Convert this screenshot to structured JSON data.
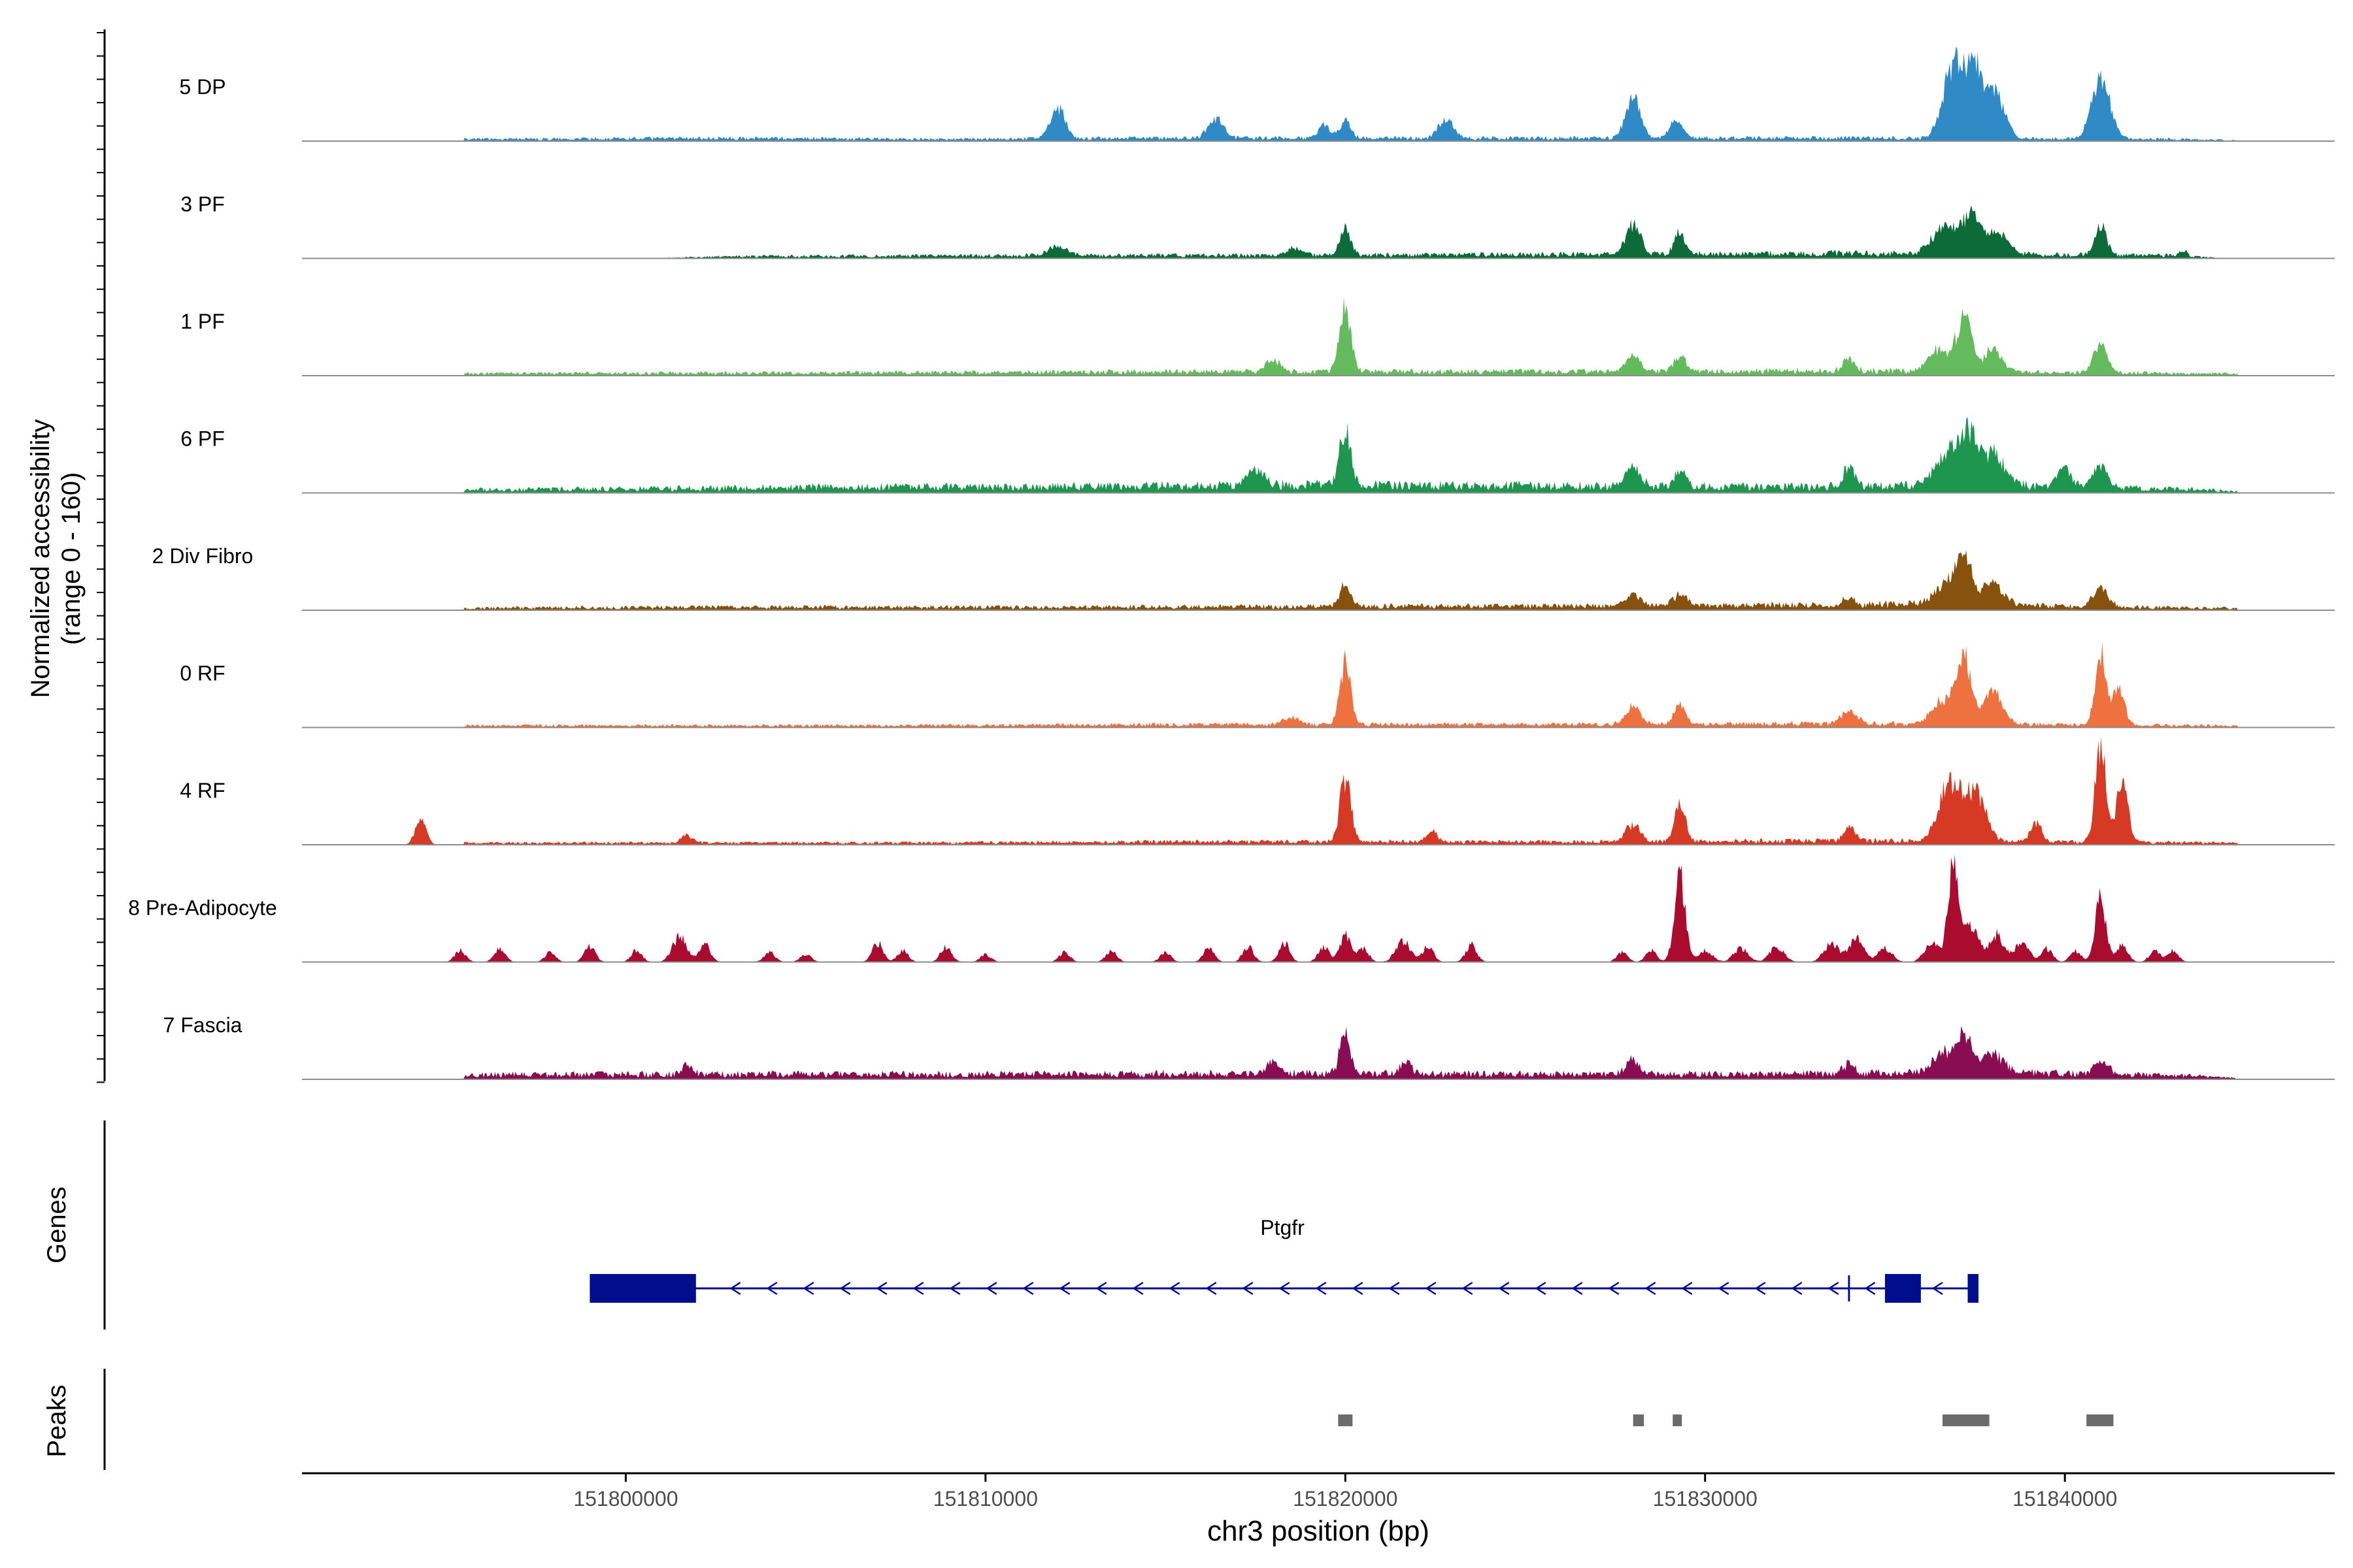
{
  "chart_data": {
    "type": "area",
    "subtype": "genome-coverage-plot",
    "region": {
      "chrom": "chr3",
      "start": 151791000,
      "end": 151847500
    },
    "axes": {
      "left_label_line1": "Normalized accessibility",
      "left_label_line2": "(range 0 - 160)",
      "ylim": [
        0,
        160
      ],
      "genes_label": "Genes",
      "peaks_label": "Peaks",
      "x_label": "chr3 position (bp)",
      "x_ticks": [
        151800000,
        151810000,
        151820000,
        151830000,
        151840000
      ],
      "x_tick_labels": [
        "151800000",
        "151810000",
        "151820000",
        "151830000",
        "151840000"
      ]
    },
    "tracks": [
      {
        "name": "5 DP",
        "color": "#2f8ac6",
        "baseline": [
          [
            151794000,
            2
          ],
          [
            151797000,
            2
          ],
          [
            151803000,
            3
          ],
          [
            151808000,
            2
          ],
          [
            151815000,
            3
          ],
          [
            151826000,
            3
          ],
          [
            151834000,
            3
          ],
          [
            151843000,
            2
          ],
          [
            151844500,
            1
          ]
        ],
        "peaks": [
          [
            151812000,
            34,
            200
          ],
          [
            151816400,
            22,
            200
          ],
          [
            151819400,
            15,
            150
          ],
          [
            151820000,
            18,
            150
          ],
          [
            151822800,
            20,
            200
          ],
          [
            151828000,
            42,
            200
          ],
          [
            151829200,
            16,
            200
          ],
          [
            151836900,
            70,
            280
          ],
          [
            151837500,
            68,
            280
          ],
          [
            151838100,
            40,
            250
          ],
          [
            151841000,
            65,
            250
          ]
        ]
      },
      {
        "name": "3 PF",
        "color": "#0c6b38",
        "baseline": [
          [
            151803000,
            2
          ],
          [
            151811000,
            3
          ],
          [
            151818000,
            3
          ],
          [
            151826000,
            4
          ],
          [
            151835000,
            5
          ],
          [
            151843000,
            3
          ]
        ],
        "peaks": [
          [
            151812000,
            10,
            250
          ],
          [
            151818600,
            8,
            200
          ],
          [
            151820000,
            28,
            150
          ],
          [
            151828000,
            32,
            200
          ],
          [
            151829300,
            22,
            150
          ],
          [
            151836600,
            25,
            300
          ],
          [
            151837400,
            40,
            300
          ],
          [
            151838200,
            22,
            250
          ],
          [
            151841000,
            32,
            150
          ],
          [
            151843300,
            6,
            100
          ]
        ]
      },
      {
        "name": "1 PF",
        "color": "#63bb5d",
        "baseline": [
          [
            151794000,
            2
          ],
          [
            151808000,
            3
          ],
          [
            151815000,
            4
          ],
          [
            151826000,
            4
          ],
          [
            151834000,
            5
          ],
          [
            151844500,
            2
          ]
        ],
        "peaks": [
          [
            151818000,
            12,
            200
          ],
          [
            151820000,
            70,
            150
          ],
          [
            151828000,
            16,
            200
          ],
          [
            151829300,
            18,
            150
          ],
          [
            151834000,
            12,
            150
          ],
          [
            151836500,
            22,
            300
          ],
          [
            151837200,
            58,
            200
          ],
          [
            151838000,
            24,
            250
          ],
          [
            151841000,
            28,
            200
          ]
        ]
      },
      {
        "name": "6 PF",
        "color": "#1e9650",
        "baseline": [
          [
            151794000,
            3
          ],
          [
            151800000,
            4
          ],
          [
            151806000,
            6
          ],
          [
            151812000,
            6
          ],
          [
            151818000,
            8
          ],
          [
            151826000,
            7
          ],
          [
            151832000,
            6
          ],
          [
            151838000,
            8
          ],
          [
            151844000,
            3
          ]
        ],
        "peaks": [
          [
            151817500,
            14,
            250
          ],
          [
            151820000,
            58,
            150
          ],
          [
            151828000,
            20,
            200
          ],
          [
            151829300,
            18,
            150
          ],
          [
            151834000,
            22,
            150
          ],
          [
            151836700,
            32,
            300
          ],
          [
            151837300,
            52,
            250
          ],
          [
            151838000,
            32,
            300
          ],
          [
            151840000,
            18,
            200
          ],
          [
            151841000,
            22,
            200
          ]
        ]
      },
      {
        "name": "2 Div Fibro",
        "color": "#86520d",
        "baseline": [
          [
            151794000,
            2
          ],
          [
            151802000,
            3
          ],
          [
            151812000,
            3
          ],
          [
            151820000,
            4
          ],
          [
            151828000,
            4
          ],
          [
            151836000,
            6
          ],
          [
            151844500,
            2
          ]
        ],
        "peaks": [
          [
            151820000,
            22,
            150
          ],
          [
            151828000,
            14,
            200
          ],
          [
            151829300,
            12,
            200
          ],
          [
            151834000,
            8,
            150
          ],
          [
            151836700,
            22,
            300
          ],
          [
            151837200,
            48,
            200
          ],
          [
            151838000,
            22,
            300
          ],
          [
            151841000,
            20,
            200
          ]
        ]
      },
      {
        "name": "0 RF",
        "color": "#ee7140",
        "baseline": [
          [
            151794000,
            2
          ],
          [
            151808000,
            2
          ],
          [
            151815000,
            3
          ],
          [
            151826000,
            3
          ],
          [
            151834000,
            4
          ],
          [
            151844500,
            2
          ]
        ],
        "peaks": [
          [
            151818500,
            8,
            200
          ],
          [
            151820000,
            62,
            150
          ],
          [
            151828000,
            18,
            200
          ],
          [
            151829300,
            22,
            150
          ],
          [
            151834000,
            14,
            200
          ],
          [
            151836600,
            24,
            300
          ],
          [
            151837200,
            72,
            200
          ],
          [
            151838000,
            34,
            250
          ],
          [
            151841000,
            72,
            150
          ],
          [
            151841500,
            40,
            150
          ]
        ]
      },
      {
        "name": "4 RF",
        "color": "#d63a24",
        "baseline": [
          [
            151794000,
            2
          ],
          [
            151808000,
            2
          ],
          [
            151815000,
            3
          ],
          [
            151826000,
            3
          ],
          [
            151834000,
            4
          ],
          [
            151844500,
            2
          ]
        ],
        "peaks": [
          [
            151794300,
            26,
            150
          ],
          [
            151801700,
            8,
            150
          ],
          [
            151820000,
            66,
            150
          ],
          [
            151822400,
            10,
            150
          ],
          [
            151828000,
            18,
            200
          ],
          [
            151829300,
            36,
            150
          ],
          [
            151834000,
            14,
            150
          ],
          [
            151836800,
            60,
            300
          ],
          [
            151837500,
            48,
            300
          ],
          [
            151839200,
            20,
            150
          ],
          [
            151841000,
            100,
            150
          ],
          [
            151841600,
            70,
            150
          ]
        ]
      },
      {
        "name": "8 Pre-Adipocyte",
        "color": "#a90c2f",
        "baseline": [],
        "peaks": [
          [
            151795400,
            12,
            150
          ],
          [
            151796500,
            14,
            150
          ],
          [
            151797900,
            10,
            150
          ],
          [
            151799000,
            16,
            150
          ],
          [
            151800300,
            12,
            150
          ],
          [
            151801500,
            26,
            200
          ],
          [
            151802200,
            18,
            150
          ],
          [
            151804000,
            10,
            150
          ],
          [
            151805000,
            8,
            150
          ],
          [
            151807000,
            20,
            150
          ],
          [
            151807700,
            12,
            150
          ],
          [
            151808900,
            16,
            150
          ],
          [
            151810000,
            8,
            150
          ],
          [
            151812200,
            10,
            150
          ],
          [
            151813500,
            12,
            150
          ],
          [
            151815000,
            10,
            150
          ],
          [
            151816200,
            14,
            150
          ],
          [
            151817300,
            16,
            150
          ],
          [
            151818300,
            20,
            150
          ],
          [
            151819400,
            16,
            150
          ],
          [
            151820000,
            28,
            150
          ],
          [
            151820500,
            14,
            150
          ],
          [
            151821600,
            22,
            200
          ],
          [
            151822300,
            16,
            150
          ],
          [
            151823500,
            18,
            150
          ],
          [
            151827700,
            10,
            150
          ],
          [
            151828500,
            12,
            150
          ],
          [
            151829300,
            90,
            150
          ],
          [
            151830000,
            12,
            200
          ],
          [
            151831000,
            14,
            200
          ],
          [
            151832000,
            16,
            200
          ],
          [
            151833500,
            20,
            200
          ],
          [
            151834200,
            24,
            200
          ],
          [
            151835000,
            14,
            200
          ],
          [
            151836300,
            20,
            200
          ],
          [
            151836900,
            96,
            150
          ],
          [
            151837400,
            40,
            200
          ],
          [
            151838100,
            28,
            200
          ],
          [
            151838800,
            20,
            200
          ],
          [
            151839500,
            14,
            150
          ],
          [
            151840300,
            12,
            150
          ],
          [
            151841000,
            66,
            150
          ],
          [
            151841600,
            18,
            150
          ],
          [
            151842500,
            12,
            150
          ],
          [
            151843000,
            12,
            150
          ]
        ]
      },
      {
        "name": "7 Fascia",
        "color": "#880d52",
        "baseline": [
          [
            151794000,
            4
          ],
          [
            151800000,
            5
          ],
          [
            151806000,
            5
          ],
          [
            151812000,
            5
          ],
          [
            151818000,
            6
          ],
          [
            151826000,
            5
          ],
          [
            151832000,
            5
          ],
          [
            151838000,
            7
          ],
          [
            151844000,
            3
          ]
        ],
        "peaks": [
          [
            151801700,
            9,
            150
          ],
          [
            151818000,
            10,
            200
          ],
          [
            151820000,
            40,
            150
          ],
          [
            151821700,
            12,
            150
          ],
          [
            151828000,
            14,
            200
          ],
          [
            151834000,
            10,
            150
          ],
          [
            151836600,
            20,
            300
          ],
          [
            151837200,
            40,
            200
          ],
          [
            151838000,
            20,
            300
          ],
          [
            151841000,
            14,
            200
          ]
        ]
      }
    ],
    "gene": {
      "name": "Ptgfr",
      "strand": "-",
      "start": 151799000,
      "end": 151837500,
      "exons": [
        [
          151799000,
          151801950
        ],
        [
          151835000,
          151836000
        ],
        [
          151837300,
          151837600
        ]
      ],
      "marker_at": 151834000,
      "color": "#000d8c"
    },
    "peaks_track": {
      "color": "#6b6b6b",
      "regions": [
        [
          151819800,
          151820200
        ],
        [
          151828000,
          151828300
        ],
        [
          151829100,
          151829350
        ],
        [
          151836600,
          151837900
        ],
        [
          151840600,
          151841350
        ]
      ]
    }
  }
}
